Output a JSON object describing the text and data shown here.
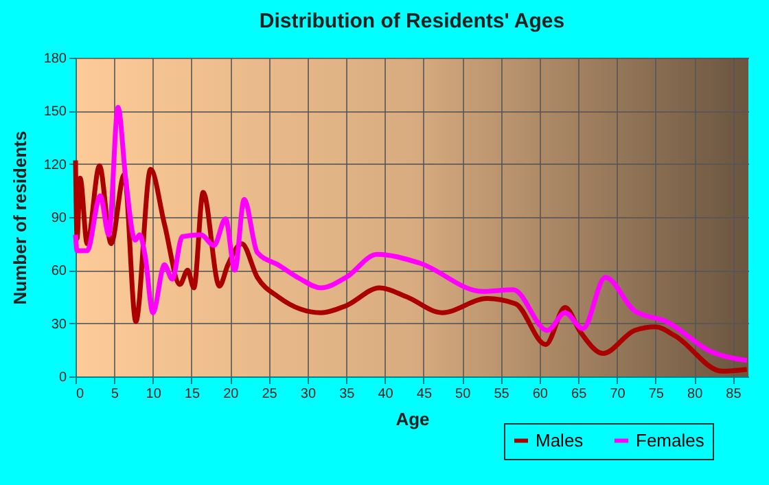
{
  "chart_data": {
    "type": "line",
    "title": "Distribution of Residents' Ages",
    "xlabel": "Age",
    "ylabel": "Number of residents",
    "xlim": [
      0,
      87
    ],
    "xticks": [
      0,
      5,
      10,
      15,
      20,
      25,
      30,
      35,
      40,
      45,
      50,
      55,
      60,
      65,
      70,
      75,
      80,
      85
    ],
    "ylim": [
      0,
      180
    ],
    "yticks": [
      0,
      30,
      60,
      90,
      120,
      150,
      180
    ],
    "grid": true,
    "legend": "bottom right",
    "series": [
      {
        "name": "Males",
        "color": "#aa0000",
        "x": [
          0,
          0.2,
          0.6,
          1.5,
          3.1,
          4.6,
          6.3,
          7.8,
          9.7,
          11.5,
          13.5,
          14.5,
          15.3,
          16.5,
          18.6,
          19.7,
          21.5,
          23.5,
          26.2,
          29.1,
          31.7,
          35,
          39.3,
          42.8,
          47.4,
          53.2,
          56.9,
          60.8,
          63.3,
          65.3,
          68.2,
          72.3,
          75,
          77.5,
          83.6,
          86.8
        ],
        "values": [
          122,
          78,
          112,
          75,
          119,
          75,
          114,
          31,
          117,
          86,
          52,
          60,
          50,
          104,
          51,
          63,
          75,
          56,
          45,
          38,
          36,
          40,
          50,
          45,
          36,
          44,
          41,
          18,
          39,
          25,
          13,
          26,
          28,
          23,
          3,
          4
        ]
      },
      {
        "name": "Females",
        "color": "#ff00ff",
        "x": [
          0,
          0.2,
          1.5,
          3.2,
          4.3,
          5.5,
          6.5,
          7.7,
          8.3,
          9,
          10,
          11.5,
          12.5,
          13.8,
          16.2,
          17.9,
          19.4,
          20.6,
          21.8,
          23.5,
          26.2,
          29.1,
          31.7,
          35,
          39,
          44.5,
          52.6,
          56.6,
          61,
          63.3,
          65.6,
          68.5,
          72.3,
          76.4,
          82.2,
          86.8
        ],
        "values": [
          80,
          71,
          71,
          102,
          80,
          152,
          111,
          77,
          80,
          68,
          36,
          63,
          55,
          79,
          80,
          74,
          89,
          60,
          100,
          70,
          63,
          55,
          50,
          56,
          69,
          64,
          48,
          49,
          26,
          36,
          27,
          56,
          37,
          31,
          14,
          9
        ]
      }
    ]
  }
}
